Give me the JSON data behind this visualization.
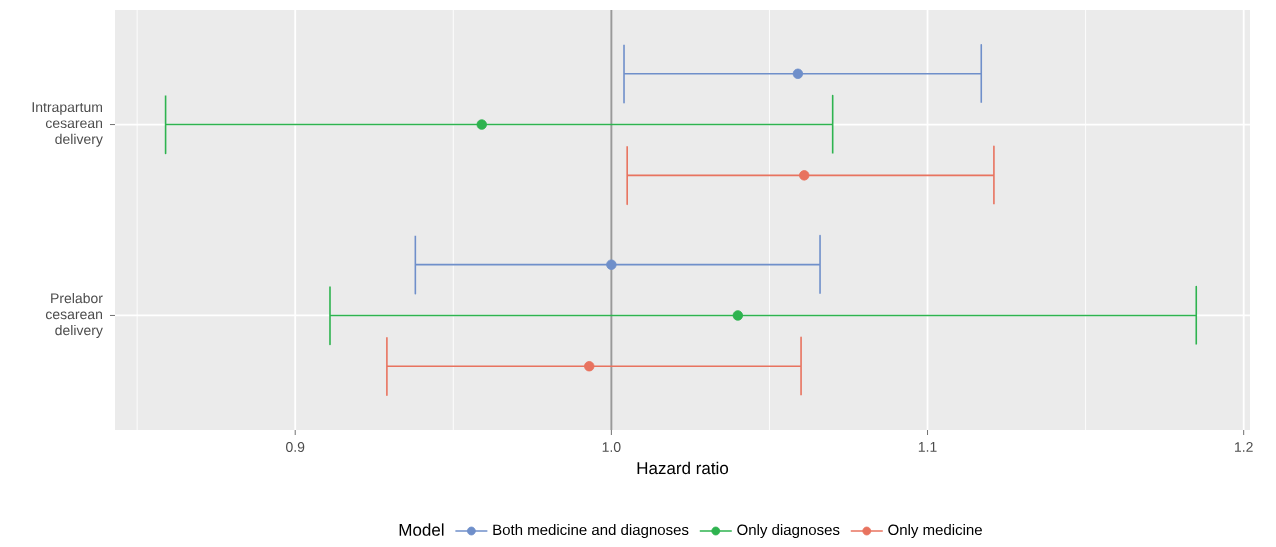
{
  "chart_data": {
    "type": "scatter",
    "orientation": "horizontal",
    "categories": [
      "Intrapartum cesarean delivery",
      "Prelabor cesarean delivery"
    ],
    "xlabel": "Hazard ratio",
    "legend_title": "Model",
    "legend": "bottom",
    "grid": true,
    "marker": "circle",
    "xlim": [
      0.843,
      1.202
    ],
    "xticks": [
      {
        "value": 0.85,
        "label": null
      },
      {
        "value": 0.9,
        "label": "0.9"
      },
      {
        "value": 0.95,
        "label": null
      },
      {
        "value": 1,
        "label": "1.0"
      },
      {
        "value": 1.05,
        "label": null
      },
      {
        "value": 1.1,
        "label": "1.1"
      },
      {
        "value": 1.15,
        "label": null
      },
      {
        "value": 1.2,
        "label": "1.2"
      }
    ],
    "ref_lines": [
      {
        "axis": "x",
        "value": 1,
        "color": "#999999"
      }
    ],
    "series": [
      {
        "name": "Both medicine and diagnoses",
        "color": "#6f8fca",
        "values": [
          1.059,
          1.0
        ],
        "errors": [
          [
            1.004,
            1.117
          ],
          [
            0.938,
            1.066
          ]
        ]
      },
      {
        "name": "Only diagnoses",
        "color": "#2eb34f",
        "values": [
          0.959,
          1.04
        ],
        "errors": [
          [
            0.859,
            1.07
          ],
          [
            0.911,
            1.185
          ]
        ]
      },
      {
        "name": "Only medicine",
        "color": "#e8735f",
        "values": [
          1.061,
          0.993
        ],
        "errors": [
          [
            1.005,
            1.121
          ],
          [
            0.929,
            1.06
          ]
        ]
      }
    ]
  }
}
